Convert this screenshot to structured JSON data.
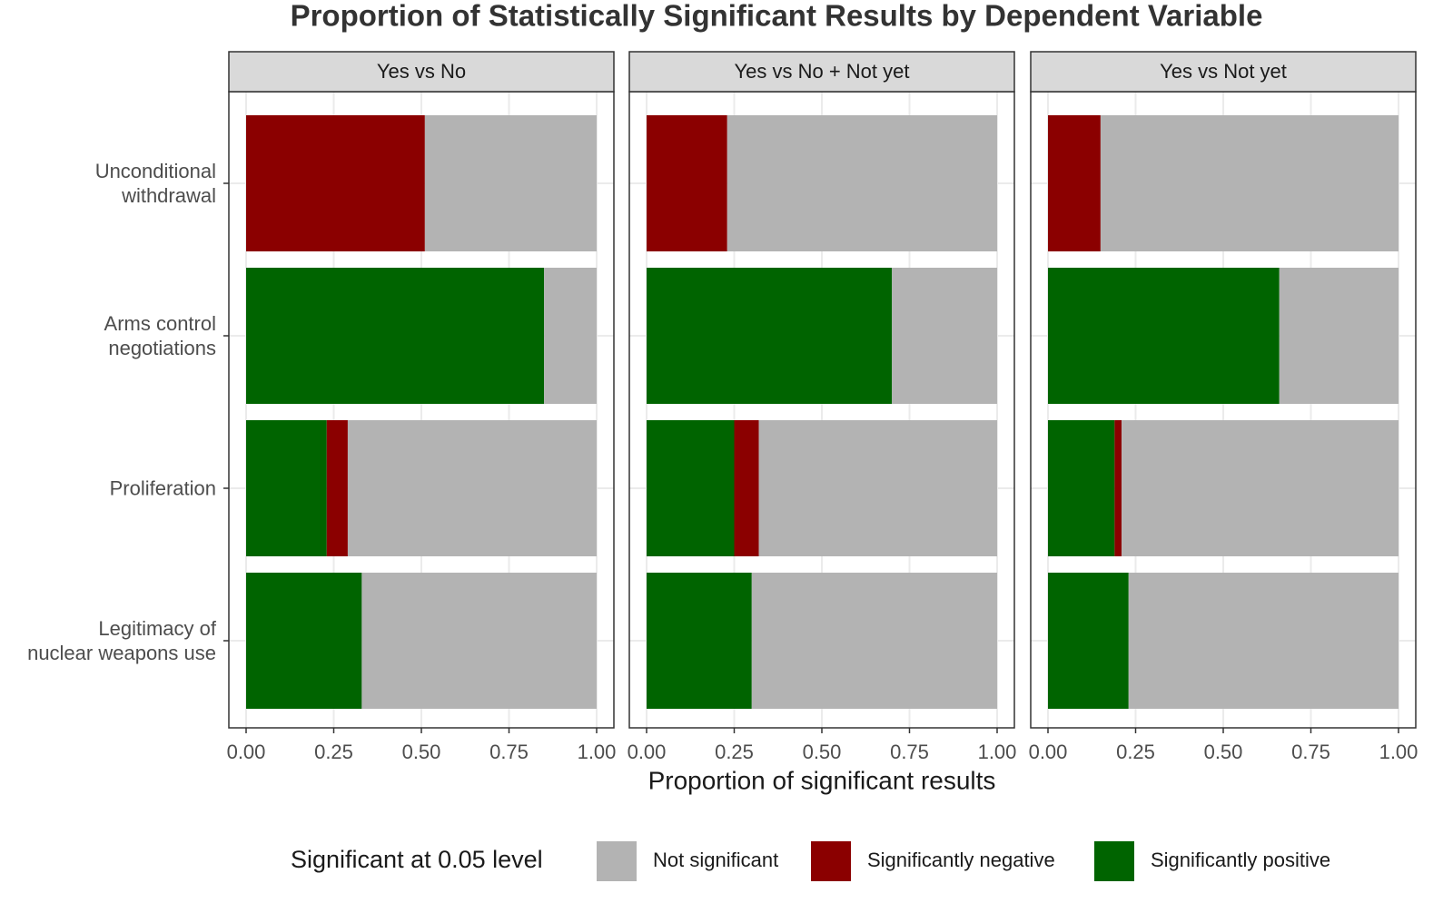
{
  "chart_data": {
    "type": "bar",
    "orientation": "horizontal",
    "stacked": true,
    "title": "Proportion of Statistically Significant Results by Dependent Variable",
    "xlabel": "Proportion of significant results",
    "legend_title": "Significant at 0.05 level",
    "legend": "bottom",
    "grid": true,
    "categories": [
      "Unconditional\nwithdrawal",
      "Arms control\nnegotiations",
      "Proliferation",
      "Legitimacy of\nnuclear weapons use"
    ],
    "series": [
      {
        "name": "Not significant",
        "color": "#b3b3b3"
      },
      {
        "name": "Significantly negative",
        "color": "#8b0000"
      },
      {
        "name": "Significantly positive",
        "color": "#006400"
      }
    ],
    "facets": [
      {
        "title": "Yes vs No",
        "values": [
          [
            0.49,
            0.15,
            0.71,
            0.67
          ],
          [
            0.51,
            0,
            0.06,
            0
          ],
          [
            0,
            0.85,
            0.23,
            0.33
          ]
        ]
      },
      {
        "title": "Yes vs No + Not yet",
        "values": [
          [
            0.77,
            0.3,
            0.68,
            0.7
          ],
          [
            0.23,
            0,
            0.07,
            0
          ],
          [
            0,
            0.7,
            0.25,
            0.3
          ]
        ]
      },
      {
        "title": "Yes vs Not yet",
        "values": [
          [
            0.85,
            0.34,
            0.79,
            0.77
          ],
          [
            0.15,
            0,
            0.02,
            0
          ],
          [
            0,
            0.66,
            0.19,
            0.23
          ]
        ]
      }
    ],
    "xlim": [
      0,
      1
    ],
    "xticks": [
      {
        "value": 0,
        "label": "0.00"
      },
      {
        "value": 0.25,
        "label": "0.25"
      },
      {
        "value": 0.5,
        "label": "0.50"
      },
      {
        "value": 0.75,
        "label": "0.75"
      },
      {
        "value": 1,
        "label": "1.00"
      }
    ]
  }
}
